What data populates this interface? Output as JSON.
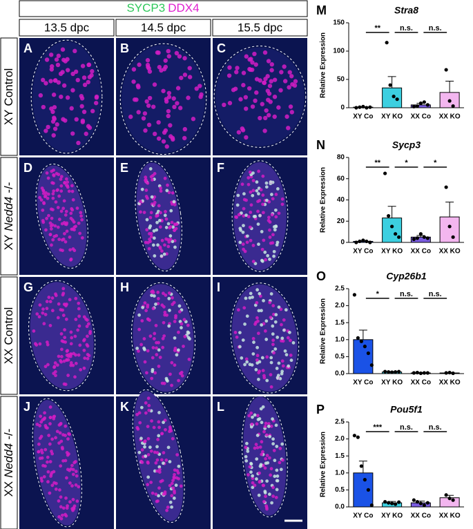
{
  "figure": {
    "stain": [
      "SYCP3",
      "DDX4"
    ],
    "columns": [
      "13.5 dpc",
      "14.5 dpc",
      "15.5 dpc"
    ],
    "rows": [
      {
        "prefix": "XY",
        "label": "Control"
      },
      {
        "prefix": "XY",
        "gene": "Nedd4",
        "suffix": "-/-"
      },
      {
        "prefix": "XX",
        "label": "Control"
      },
      {
        "prefix": "XX",
        "gene": "Nedd4",
        "suffix": "-/-"
      }
    ],
    "panels": [
      "A",
      "B",
      "C",
      "D",
      "E",
      "F",
      "G",
      "H",
      "I",
      "J",
      "K",
      "L"
    ]
  },
  "chart_data": [
    {
      "type": "bar",
      "panel": "M",
      "title": "Stra8",
      "ylabel": "Relative Expression",
      "categories": [
        "XY Co",
        "XY KO",
        "XX Co",
        "XX KO"
      ],
      "colors": [
        "#1a52e6",
        "#3ccfe0",
        "#7a5ce0",
        "#f3b6ef"
      ],
      "values": [
        1,
        35,
        5,
        27
      ],
      "errors": [
        0.5,
        20,
        3,
        20
      ],
      "points": [
        [
          0,
          1,
          2,
          0,
          1
        ],
        [
          115,
          40,
          20,
          15
        ],
        [
          2,
          3,
          8,
          10,
          5
        ],
        [
          67,
          12,
          3
        ]
      ],
      "significance": [
        "**",
        "n.s.",
        "n.s."
      ],
      "ylim": [
        0,
        150
      ],
      "yticks": [
        0,
        50,
        100,
        150
      ]
    },
    {
      "type": "bar",
      "panel": "N",
      "title": "Sycp3",
      "ylabel": "Relative Expression",
      "categories": [
        "XY Co",
        "XY KO",
        "XX Co",
        "XX KO"
      ],
      "colors": [
        "#1a52e6",
        "#3ccfe0",
        "#7a5ce0",
        "#f3b6ef"
      ],
      "values": [
        1,
        23,
        5,
        24
      ],
      "errors": [
        0.5,
        11,
        1.5,
        14
      ],
      "points": [
        [
          0,
          1,
          2,
          1,
          0
        ],
        [
          65,
          25,
          15,
          8,
          5
        ],
        [
          3,
          4,
          8,
          5,
          4
        ],
        [
          52,
          15,
          5
        ]
      ],
      "significance": [
        "**",
        "*",
        "*"
      ],
      "ylim": [
        0,
        80
      ],
      "yticks": [
        0,
        20,
        40,
        60,
        80
      ]
    },
    {
      "type": "bar",
      "panel": "O",
      "title": "Cyp26b1",
      "ylabel": "Relative Expression",
      "categories": [
        "XY Co",
        "XY KO",
        "XX Co",
        "XX KO"
      ],
      "colors": [
        "#1a52e6",
        "#3ccfe0",
        "#7a5ce0",
        "#f3b6ef"
      ],
      "values": [
        1.0,
        0.05,
        0.02,
        0.02
      ],
      "errors": [
        0.28,
        0.01,
        0.01,
        0.01
      ],
      "points": [
        [
          2.32,
          1.05,
          0.95,
          0.8,
          0.6,
          0.25
        ],
        [
          0.06,
          0.05,
          0.04,
          0.05,
          0.06
        ],
        [
          0.02,
          0.03,
          0.01,
          0.02,
          0.02
        ],
        [
          0.02,
          0.03,
          0.01
        ]
      ],
      "significance": [
        "*",
        "n.s.",
        "n.s."
      ],
      "ylim": [
        0,
        2.5
      ],
      "yticks": [
        {
          "value": 0,
          "label": "0.0"
        },
        0.5,
        {
          "value": 1,
          "label": "1.0"
        },
        1.5,
        {
          "value": 2,
          "label": "2.0"
        },
        2.5
      ]
    },
    {
      "type": "bar",
      "panel": "P",
      "title": "Pou5f1",
      "ylabel": "Relative Expression",
      "categories": [
        "XY Co",
        "XY KO",
        "XX Co",
        "XX KO"
      ],
      "colors": [
        "#1a52e6",
        "#3ccfe0",
        "#7a5ce0",
        "#f3b6ef"
      ],
      "values": [
        1.0,
        0.12,
        0.12,
        0.27
      ],
      "errors": [
        0.35,
        0.04,
        0.05,
        0.07
      ],
      "points": [
        [
          2.1,
          2.05,
          1.2,
          0.8,
          0.5,
          0.05
        ],
        [
          0.15,
          0.12,
          0.1,
          0.08,
          0.14
        ],
        [
          0.2,
          0.15,
          0.1,
          0.05,
          0.12
        ],
        [
          0.35,
          0.25,
          0.2
        ]
      ],
      "significance": [
        "***",
        "n.s.",
        "n.s."
      ],
      "ylim": [
        0,
        2.5
      ],
      "yticks": [
        {
          "value": 0,
          "label": "0.0"
        },
        0.5,
        {
          "value": 1,
          "label": "1.0"
        },
        1.5,
        {
          "value": 2,
          "label": "2.0"
        },
        2.5
      ]
    }
  ]
}
